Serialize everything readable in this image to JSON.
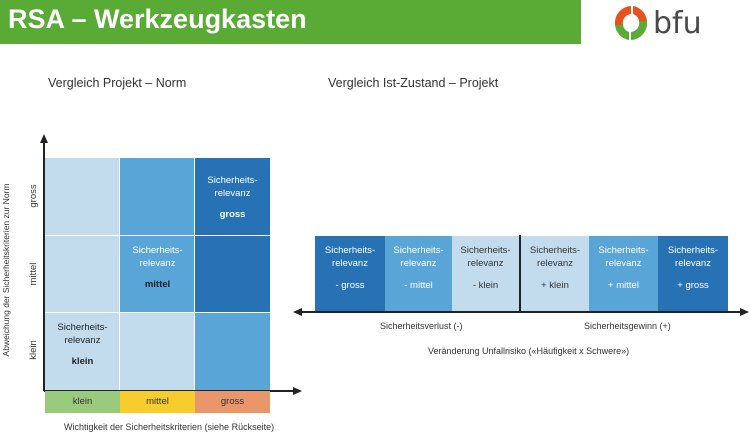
{
  "header": {
    "title": "RSA – Werkzeugkasten",
    "color": "#5aab36"
  },
  "logo": {
    "text": "bfu",
    "colors": [
      "#e8501e",
      "#5aab36"
    ]
  },
  "left": {
    "title": "Vergleich Projekt – Norm",
    "y_axis_label": "Abweichung der Sicherheitskriterien zur Norm",
    "x_axis_label": "Wichtigkeit der Sicherheitskriterien (siehe Rückseite)",
    "y_levels": [
      "gross",
      "mittel",
      "klein"
    ],
    "x_levels": [
      "klein",
      "mittel",
      "gross"
    ],
    "x_level_colors": [
      "#9acb7c",
      "#f6cd2d",
      "#e9966a"
    ],
    "cell_line1": "Sicherheits-",
    "cell_line2": "relevanz",
    "cells": {
      "gross": "gross",
      "mittel": "mittel",
      "klein": "klein"
    }
  },
  "right": {
    "title": "Vergleich Ist-Zustand – Projekt",
    "cell_line1": "Sicherheits-",
    "cell_line2": "relevanz",
    "cells": [
      "- gross",
      "- mittel",
      "- klein",
      "+ klein",
      "+ mittel",
      "+ gross"
    ],
    "loss_label": "Sicherheitsverlust (-)",
    "gain_label": "Sicherheitsgewinn (+)",
    "axis_label": "Veränderung Unfallrisiko («Häufigkeit x Schwere»)"
  }
}
